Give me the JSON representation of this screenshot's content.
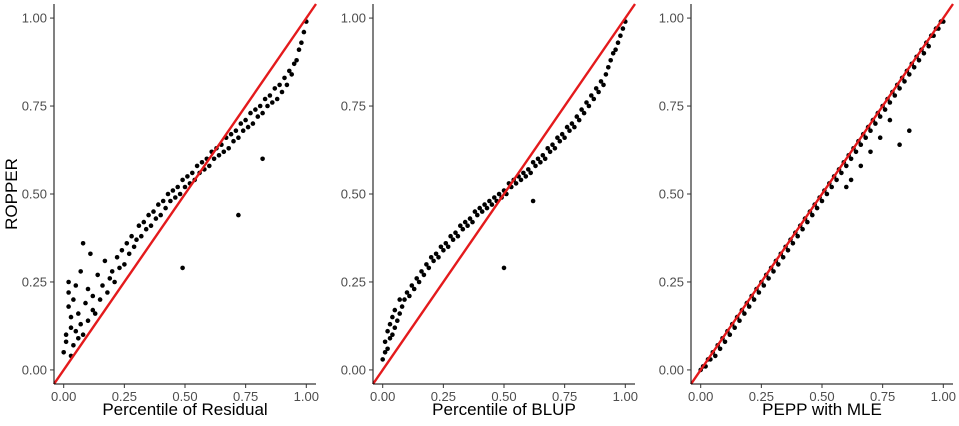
{
  "chart_data": [
    {
      "type": "scatter",
      "xlabel": "Percentile of Residual",
      "ylabel": "ROPPER",
      "xlim": [
        -0.04,
        1.04
      ],
      "ylim": [
        -0.04,
        1.04
      ],
      "xticks": [
        "0.00",
        "0.25",
        "0.50",
        "0.75",
        "1.00"
      ],
      "yticks": [
        "0.00",
        "0.25",
        "0.50",
        "0.75",
        "1.00"
      ],
      "reference_line": {
        "from": [
          -0.04,
          -0.04
        ],
        "to": [
          1.04,
          1.04
        ],
        "color": "#e41a1c"
      },
      "point_color": "#000000",
      "grid": false,
      "points": [
        [
          0.0,
          0.05
        ],
        [
          0.01,
          0.08
        ],
        [
          0.01,
          0.1
        ],
        [
          0.02,
          0.18
        ],
        [
          0.02,
          0.22
        ],
        [
          0.02,
          0.25
        ],
        [
          0.03,
          0.04
        ],
        [
          0.03,
          0.12
        ],
        [
          0.03,
          0.15
        ],
        [
          0.04,
          0.07
        ],
        [
          0.04,
          0.2
        ],
        [
          0.05,
          0.11
        ],
        [
          0.05,
          0.24
        ],
        [
          0.06,
          0.09
        ],
        [
          0.06,
          0.16
        ],
        [
          0.07,
          0.13
        ],
        [
          0.07,
          0.28
        ],
        [
          0.08,
          0.1
        ],
        [
          0.08,
          0.36
        ],
        [
          0.09,
          0.19
        ],
        [
          0.1,
          0.14
        ],
        [
          0.1,
          0.23
        ],
        [
          0.11,
          0.33
        ],
        [
          0.12,
          0.17
        ],
        [
          0.12,
          0.21
        ],
        [
          0.13,
          0.16
        ],
        [
          0.14,
          0.27
        ],
        [
          0.15,
          0.2
        ],
        [
          0.16,
          0.24
        ],
        [
          0.17,
          0.31
        ],
        [
          0.18,
          0.22
        ],
        [
          0.19,
          0.26
        ],
        [
          0.2,
          0.28
        ],
        [
          0.21,
          0.25
        ],
        [
          0.22,
          0.32
        ],
        [
          0.23,
          0.29
        ],
        [
          0.24,
          0.34
        ],
        [
          0.25,
          0.3
        ],
        [
          0.26,
          0.36
        ],
        [
          0.27,
          0.33
        ],
        [
          0.28,
          0.38
        ],
        [
          0.29,
          0.35
        ],
        [
          0.3,
          0.37
        ],
        [
          0.31,
          0.41
        ],
        [
          0.32,
          0.38
        ],
        [
          0.33,
          0.42
        ],
        [
          0.34,
          0.4
        ],
        [
          0.35,
          0.44
        ],
        [
          0.36,
          0.41
        ],
        [
          0.37,
          0.45
        ],
        [
          0.38,
          0.43
        ],
        [
          0.39,
          0.47
        ],
        [
          0.4,
          0.44
        ],
        [
          0.41,
          0.48
        ],
        [
          0.42,
          0.46
        ],
        [
          0.43,
          0.5
        ],
        [
          0.44,
          0.48
        ],
        [
          0.45,
          0.51
        ],
        [
          0.46,
          0.49
        ],
        [
          0.47,
          0.52
        ],
        [
          0.48,
          0.5
        ],
        [
          0.49,
          0.29
        ],
        [
          0.49,
          0.54
        ],
        [
          0.5,
          0.52
        ],
        [
          0.51,
          0.55
        ],
        [
          0.52,
          0.53
        ],
        [
          0.53,
          0.56
        ],
        [
          0.54,
          0.54
        ],
        [
          0.55,
          0.58
        ],
        [
          0.56,
          0.56
        ],
        [
          0.57,
          0.59
        ],
        [
          0.58,
          0.57
        ],
        [
          0.59,
          0.6
        ],
        [
          0.6,
          0.58
        ],
        [
          0.61,
          0.62
        ],
        [
          0.62,
          0.6
        ],
        [
          0.63,
          0.63
        ],
        [
          0.64,
          0.61
        ],
        [
          0.65,
          0.64
        ],
        [
          0.66,
          0.62
        ],
        [
          0.67,
          0.66
        ],
        [
          0.68,
          0.63
        ],
        [
          0.69,
          0.67
        ],
        [
          0.7,
          0.65
        ],
        [
          0.71,
          0.68
        ],
        [
          0.72,
          0.44
        ],
        [
          0.72,
          0.66
        ],
        [
          0.73,
          0.7
        ],
        [
          0.74,
          0.68
        ],
        [
          0.75,
          0.71
        ],
        [
          0.76,
          0.69
        ],
        [
          0.77,
          0.73
        ],
        [
          0.78,
          0.7
        ],
        [
          0.79,
          0.74
        ],
        [
          0.8,
          0.72
        ],
        [
          0.81,
          0.75
        ],
        [
          0.82,
          0.6
        ],
        [
          0.82,
          0.73
        ],
        [
          0.83,
          0.77
        ],
        [
          0.84,
          0.75
        ],
        [
          0.85,
          0.78
        ],
        [
          0.86,
          0.76
        ],
        [
          0.87,
          0.8
        ],
        [
          0.88,
          0.77
        ],
        [
          0.89,
          0.81
        ],
        [
          0.9,
          0.79
        ],
        [
          0.91,
          0.83
        ],
        [
          0.92,
          0.81
        ],
        [
          0.93,
          0.85
        ],
        [
          0.94,
          0.84
        ],
        [
          0.95,
          0.87
        ],
        [
          0.96,
          0.88
        ],
        [
          0.97,
          0.91
        ],
        [
          0.98,
          0.93
        ],
        [
          0.99,
          0.96
        ],
        [
          1.0,
          0.99
        ]
      ]
    },
    {
      "type": "scatter",
      "xlabel": "Percentile of BLUP",
      "ylabel": "",
      "xlim": [
        -0.04,
        1.04
      ],
      "ylim": [
        -0.04,
        1.04
      ],
      "xticks": [
        "0.00",
        "0.25",
        "0.50",
        "0.75",
        "1.00"
      ],
      "yticks": [
        "0.00",
        "0.25",
        "0.50",
        "0.75",
        "1.00"
      ],
      "reference_line": {
        "from": [
          -0.04,
          -0.04
        ],
        "to": [
          1.04,
          1.04
        ],
        "color": "#e41a1c"
      },
      "point_color": "#000000",
      "grid": false,
      "points": [
        [
          0.0,
          0.03
        ],
        [
          0.01,
          0.05
        ],
        [
          0.01,
          0.08
        ],
        [
          0.02,
          0.06
        ],
        [
          0.02,
          0.11
        ],
        [
          0.03,
          0.09
        ],
        [
          0.03,
          0.13
        ],
        [
          0.04,
          0.1
        ],
        [
          0.04,
          0.15
        ],
        [
          0.05,
          0.12
        ],
        [
          0.05,
          0.17
        ],
        [
          0.06,
          0.14
        ],
        [
          0.07,
          0.16
        ],
        [
          0.07,
          0.2
        ],
        [
          0.08,
          0.18
        ],
        [
          0.09,
          0.2
        ],
        [
          0.1,
          0.22
        ],
        [
          0.11,
          0.21
        ],
        [
          0.12,
          0.24
        ],
        [
          0.13,
          0.23
        ],
        [
          0.14,
          0.26
        ],
        [
          0.15,
          0.25
        ],
        [
          0.16,
          0.28
        ],
        [
          0.17,
          0.27
        ],
        [
          0.18,
          0.3
        ],
        [
          0.19,
          0.29
        ],
        [
          0.2,
          0.32
        ],
        [
          0.21,
          0.31
        ],
        [
          0.22,
          0.33
        ],
        [
          0.23,
          0.32
        ],
        [
          0.24,
          0.35
        ],
        [
          0.25,
          0.34
        ],
        [
          0.26,
          0.36
        ],
        [
          0.27,
          0.35
        ],
        [
          0.28,
          0.38
        ],
        [
          0.29,
          0.37
        ],
        [
          0.3,
          0.39
        ],
        [
          0.31,
          0.38
        ],
        [
          0.32,
          0.41
        ],
        [
          0.33,
          0.4
        ],
        [
          0.34,
          0.42
        ],
        [
          0.35,
          0.41
        ],
        [
          0.36,
          0.43
        ],
        [
          0.37,
          0.42
        ],
        [
          0.38,
          0.45
        ],
        [
          0.39,
          0.44
        ],
        [
          0.4,
          0.46
        ],
        [
          0.41,
          0.45
        ],
        [
          0.42,
          0.47
        ],
        [
          0.43,
          0.46
        ],
        [
          0.44,
          0.48
        ],
        [
          0.45,
          0.47
        ],
        [
          0.46,
          0.49
        ],
        [
          0.47,
          0.48
        ],
        [
          0.48,
          0.5
        ],
        [
          0.49,
          0.49
        ],
        [
          0.5,
          0.51
        ],
        [
          0.5,
          0.29
        ],
        [
          0.51,
          0.5
        ],
        [
          0.52,
          0.53
        ],
        [
          0.53,
          0.52
        ],
        [
          0.54,
          0.54
        ],
        [
          0.55,
          0.53
        ],
        [
          0.56,
          0.55
        ],
        [
          0.57,
          0.54
        ],
        [
          0.58,
          0.56
        ],
        [
          0.59,
          0.55
        ],
        [
          0.6,
          0.57
        ],
        [
          0.61,
          0.56
        ],
        [
          0.62,
          0.48
        ],
        [
          0.62,
          0.59
        ],
        [
          0.63,
          0.58
        ],
        [
          0.64,
          0.6
        ],
        [
          0.65,
          0.59
        ],
        [
          0.66,
          0.61
        ],
        [
          0.67,
          0.6
        ],
        [
          0.68,
          0.63
        ],
        [
          0.69,
          0.62
        ],
        [
          0.7,
          0.64
        ],
        [
          0.71,
          0.63
        ],
        [
          0.72,
          0.66
        ],
        [
          0.73,
          0.65
        ],
        [
          0.74,
          0.67
        ],
        [
          0.75,
          0.66
        ],
        [
          0.76,
          0.69
        ],
        [
          0.77,
          0.68
        ],
        [
          0.78,
          0.7
        ],
        [
          0.79,
          0.69
        ],
        [
          0.8,
          0.72
        ],
        [
          0.81,
          0.71
        ],
        [
          0.82,
          0.74
        ],
        [
          0.83,
          0.73
        ],
        [
          0.84,
          0.76
        ],
        [
          0.85,
          0.75
        ],
        [
          0.86,
          0.78
        ],
        [
          0.87,
          0.77
        ],
        [
          0.88,
          0.8
        ],
        [
          0.89,
          0.79
        ],
        [
          0.9,
          0.82
        ],
        [
          0.91,
          0.81
        ],
        [
          0.92,
          0.84
        ],
        [
          0.93,
          0.86
        ],
        [
          0.94,
          0.88
        ],
        [
          0.95,
          0.9
        ],
        [
          0.96,
          0.91
        ],
        [
          0.97,
          0.93
        ],
        [
          0.98,
          0.95
        ],
        [
          0.99,
          0.97
        ],
        [
          1.0,
          0.99
        ]
      ]
    },
    {
      "type": "scatter",
      "xlabel": "PEPP with MLE",
      "ylabel": "",
      "xlim": [
        -0.04,
        1.04
      ],
      "ylim": [
        -0.04,
        1.04
      ],
      "xticks": [
        "0.00",
        "0.25",
        "0.50",
        "0.75",
        "1.00"
      ],
      "yticks": [
        "0.00",
        "0.25",
        "0.50",
        "0.75",
        "1.00"
      ],
      "reference_line": {
        "from": [
          -0.04,
          -0.04
        ],
        "to": [
          1.04,
          1.04
        ],
        "color": "#e41a1c"
      },
      "point_color": "#000000",
      "grid": false,
      "points": [
        [
          0.0,
          0.0
        ],
        [
          0.01,
          0.01
        ],
        [
          0.02,
          0.01
        ],
        [
          0.03,
          0.03
        ],
        [
          0.04,
          0.03
        ],
        [
          0.05,
          0.05
        ],
        [
          0.06,
          0.04
        ],
        [
          0.07,
          0.07
        ],
        [
          0.08,
          0.06
        ],
        [
          0.09,
          0.09
        ],
        [
          0.1,
          0.08
        ],
        [
          0.11,
          0.11
        ],
        [
          0.12,
          0.1
        ],
        [
          0.13,
          0.13
        ],
        [
          0.14,
          0.12
        ],
        [
          0.15,
          0.15
        ],
        [
          0.16,
          0.14
        ],
        [
          0.17,
          0.17
        ],
        [
          0.18,
          0.16
        ],
        [
          0.19,
          0.19
        ],
        [
          0.2,
          0.18
        ],
        [
          0.21,
          0.21
        ],
        [
          0.22,
          0.2
        ],
        [
          0.23,
          0.23
        ],
        [
          0.24,
          0.22
        ],
        [
          0.25,
          0.25
        ],
        [
          0.26,
          0.24
        ],
        [
          0.27,
          0.27
        ],
        [
          0.28,
          0.26
        ],
        [
          0.29,
          0.29
        ],
        [
          0.3,
          0.28
        ],
        [
          0.31,
          0.31
        ],
        [
          0.32,
          0.3
        ],
        [
          0.33,
          0.33
        ],
        [
          0.34,
          0.32
        ],
        [
          0.35,
          0.35
        ],
        [
          0.36,
          0.34
        ],
        [
          0.37,
          0.37
        ],
        [
          0.38,
          0.36
        ],
        [
          0.39,
          0.39
        ],
        [
          0.4,
          0.38
        ],
        [
          0.41,
          0.41
        ],
        [
          0.42,
          0.4
        ],
        [
          0.43,
          0.43
        ],
        [
          0.44,
          0.42
        ],
        [
          0.45,
          0.45
        ],
        [
          0.46,
          0.44
        ],
        [
          0.47,
          0.47
        ],
        [
          0.48,
          0.46
        ],
        [
          0.49,
          0.49
        ],
        [
          0.5,
          0.48
        ],
        [
          0.51,
          0.51
        ],
        [
          0.52,
          0.5
        ],
        [
          0.53,
          0.53
        ],
        [
          0.54,
          0.52
        ],
        [
          0.55,
          0.55
        ],
        [
          0.56,
          0.54
        ],
        [
          0.57,
          0.57
        ],
        [
          0.58,
          0.56
        ],
        [
          0.59,
          0.59
        ],
        [
          0.6,
          0.58
        ],
        [
          0.61,
          0.61
        ],
        [
          0.62,
          0.6
        ],
        [
          0.63,
          0.63
        ],
        [
          0.64,
          0.62
        ],
        [
          0.65,
          0.65
        ],
        [
          0.66,
          0.64
        ],
        [
          0.67,
          0.67
        ],
        [
          0.68,
          0.66
        ],
        [
          0.69,
          0.69
        ],
        [
          0.7,
          0.68
        ],
        [
          0.71,
          0.71
        ],
        [
          0.72,
          0.7
        ],
        [
          0.73,
          0.73
        ],
        [
          0.74,
          0.72
        ],
        [
          0.75,
          0.75
        ],
        [
          0.76,
          0.74
        ],
        [
          0.77,
          0.77
        ],
        [
          0.78,
          0.76
        ],
        [
          0.79,
          0.79
        ],
        [
          0.8,
          0.78
        ],
        [
          0.81,
          0.81
        ],
        [
          0.82,
          0.8
        ],
        [
          0.83,
          0.83
        ],
        [
          0.84,
          0.82
        ],
        [
          0.85,
          0.85
        ],
        [
          0.86,
          0.84
        ],
        [
          0.87,
          0.87
        ],
        [
          0.88,
          0.86
        ],
        [
          0.89,
          0.89
        ],
        [
          0.9,
          0.88
        ],
        [
          0.91,
          0.91
        ],
        [
          0.92,
          0.9
        ],
        [
          0.93,
          0.93
        ],
        [
          0.94,
          0.92
        ],
        [
          0.95,
          0.95
        ],
        [
          0.96,
          0.95
        ],
        [
          0.97,
          0.97
        ],
        [
          0.98,
          0.97
        ],
        [
          0.99,
          0.99
        ],
        [
          1.0,
          0.99
        ],
        [
          0.6,
          0.52
        ],
        [
          0.62,
          0.54
        ],
        [
          0.66,
          0.58
        ],
        [
          0.7,
          0.62
        ],
        [
          0.74,
          0.66
        ],
        [
          0.78,
          0.71
        ],
        [
          0.82,
          0.64
        ],
        [
          0.86,
          0.68
        ]
      ]
    }
  ]
}
